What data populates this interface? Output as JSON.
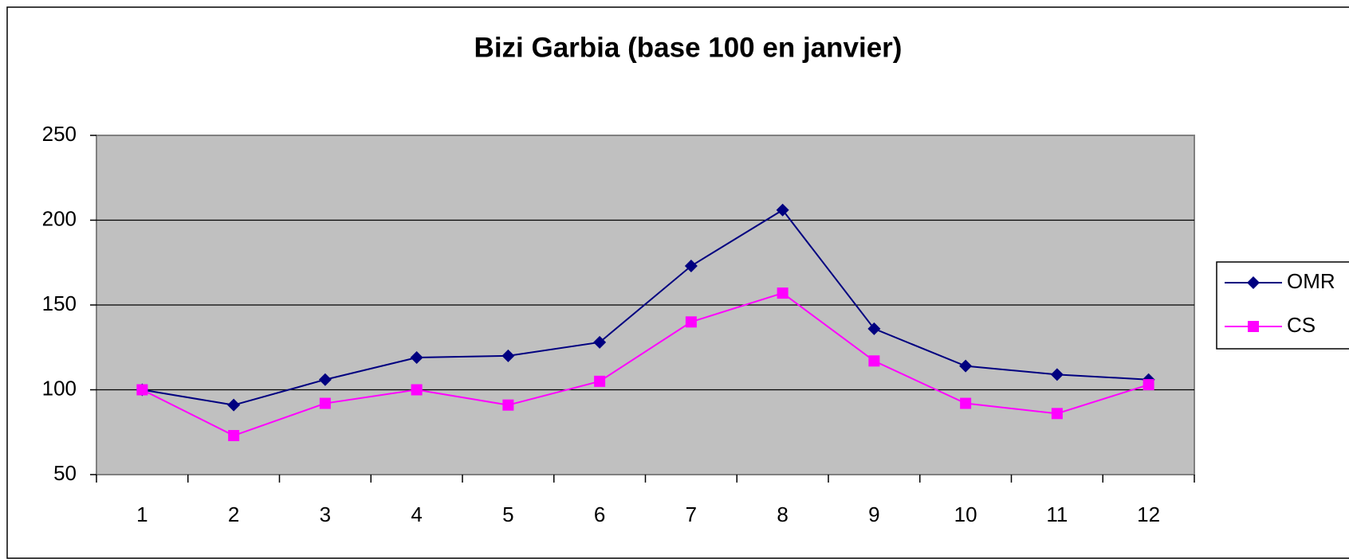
{
  "chart_data": {
    "type": "line",
    "title": "Bizi Garbia (base 100 en janvier)",
    "categories": [
      "1",
      "2",
      "3",
      "4",
      "5",
      "6",
      "7",
      "8",
      "9",
      "10",
      "11",
      "12"
    ],
    "series": [
      {
        "name": "OMR",
        "color": "#000080",
        "marker": "diamond",
        "values": [
          100,
          91,
          106,
          119,
          120,
          128,
          173,
          206,
          136,
          114,
          109,
          106
        ]
      },
      {
        "name": "CS",
        "color": "#ff00ff",
        "marker": "square",
        "values": [
          100,
          73,
          92,
          100,
          91,
          105,
          140,
          157,
          117,
          92,
          86,
          103
        ]
      }
    ],
    "ylim": [
      50,
      250
    ],
    "yticks": [
      50,
      100,
      150,
      200,
      250
    ],
    "grid": true,
    "legend": "right"
  }
}
